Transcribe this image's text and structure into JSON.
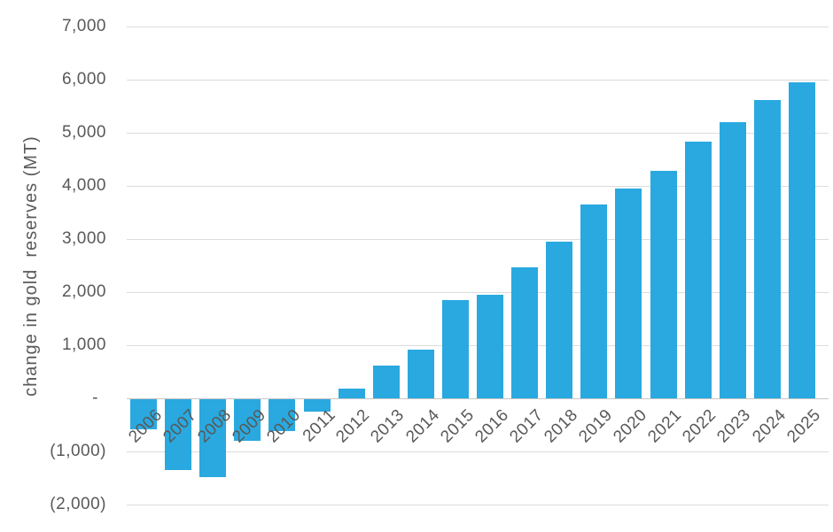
{
  "chart_data": {
    "type": "bar",
    "title": "",
    "xlabel": "",
    "ylabel": "change in gold  reserves (MT)",
    "categories": [
      "2006",
      "2007",
      "2008",
      "2009",
      "2010",
      "2011",
      "2012",
      "2013",
      "2014",
      "2015",
      "2016",
      "2017",
      "2018",
      "2019",
      "2020",
      "2021",
      "2022",
      "2023",
      "2024",
      "2025"
    ],
    "values": [
      -560,
      -1330,
      -1460,
      -780,
      -600,
      -240,
      180,
      610,
      920,
      1850,
      1950,
      2460,
      2950,
      3650,
      3950,
      4280,
      4830,
      5200,
      5620,
      5950
    ],
    "series_name": "change in gold reserves (MT)",
    "ylim": [
      -2000,
      7000
    ],
    "ytick_step": 1000,
    "yticks": [
      {
        "value": 7000,
        "label": "7,000"
      },
      {
        "value": 6000,
        "label": "6,000"
      },
      {
        "value": 5000,
        "label": "5,000"
      },
      {
        "value": 4000,
        "label": "4,000"
      },
      {
        "value": 3000,
        "label": "3,000"
      },
      {
        "value": 2000,
        "label": "2,000"
      },
      {
        "value": 1000,
        "label": "1,000"
      },
      {
        "value": 0,
        "label": "-"
      },
      {
        "value": -1000,
        "label": "(1,000)"
      },
      {
        "value": -2000,
        "label": "(2,000)"
      }
    ],
    "grid": true,
    "legend": false,
    "colors": {
      "bar": "#29a9e0",
      "grid": "#dcdcdc",
      "zero_line": "#c6c6c6",
      "text": "#595959",
      "background": "#ffffff"
    }
  }
}
